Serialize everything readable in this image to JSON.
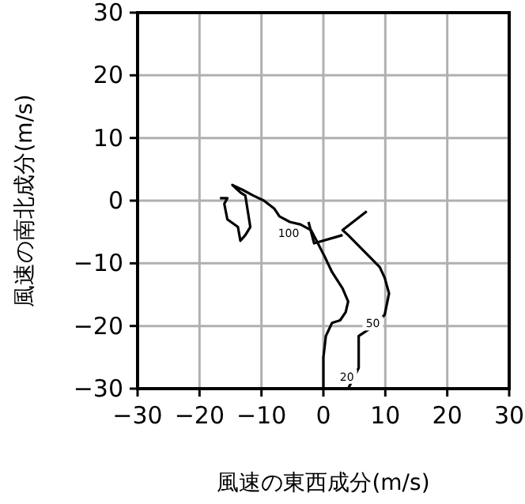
{
  "chart_data": {
    "type": "line",
    "xlabel": "風速の東西成分(m/s)",
    "ylabel": "風速の南北成分(m/s)",
    "xlim": [
      -30,
      30
    ],
    "ylim": [
      -30,
      30
    ],
    "xticks": [
      {
        "value": -30,
        "label": "−30"
      },
      {
        "value": -20,
        "label": "−20"
      },
      {
        "value": -10,
        "label": "−10"
      },
      0,
      10,
      20,
      30
    ],
    "yticks": [
      {
        "value": -30,
        "label": "−30"
      },
      {
        "value": -20,
        "label": "−20"
      },
      {
        "value": -10,
        "label": "−10"
      },
      0,
      10,
      20,
      30
    ],
    "grid": true,
    "marker": "none",
    "line_style": "solid",
    "series": [
      {
        "color": "#000000",
        "x": [
          0,
          0,
          0.4,
          1.4,
          2.7,
          3.6,
          4,
          3.1,
          1.4,
          0.2,
          -1.1,
          -2,
          -3.7,
          -5.4,
          -7.1,
          -7.9,
          -9.6,
          -11.3,
          -13,
          -14.7,
          -13.4,
          -12.6,
          -12.2,
          -11.8,
          -12.6,
          -13.4,
          -13.8,
          -15.5,
          -16,
          -15.5,
          -16.7
        ],
        "values": [
          -30,
          -25,
          -21.6,
          -19.5,
          -19.1,
          -17.8,
          -16.1,
          -14,
          -11.4,
          -8.9,
          -6.4,
          -4.7,
          -3.8,
          -3.4,
          -2.5,
          -1.3,
          0,
          0.8,
          1.7,
          2.5,
          1.3,
          0.8,
          -1.7,
          -4.2,
          -5.5,
          -6.4,
          -4.2,
          -3,
          -0.5,
          0.4,
          0.4
        ]
      },
      {
        "color": "#000000",
        "x": [
          4,
          5.7,
          5.7,
          8.3,
          9.9,
          10.6,
          9.9,
          9.1,
          7.4,
          5.7,
          4,
          3.1,
          7
        ],
        "values": [
          -30,
          -26.7,
          -21.6,
          -19.9,
          -18.2,
          -14.8,
          -12.3,
          -10.6,
          -8.9,
          -7.2,
          -5.5,
          -4.7,
          -1.7
        ]
      },
      {
        "color": "#000000",
        "x": [
          3.1,
          -1.5,
          -2.4
        ],
        "values": [
          -5.5,
          -6.8,
          -3.4
        ]
      }
    ],
    "annotations": [
      {
        "text": "100",
        "x": -3.7,
        "y": -3.8
      },
      {
        "text": "50",
        "x": 9.9,
        "y": -18.2
      },
      {
        "text": "20",
        "x": 5.7,
        "y": -26.7
      }
    ]
  }
}
